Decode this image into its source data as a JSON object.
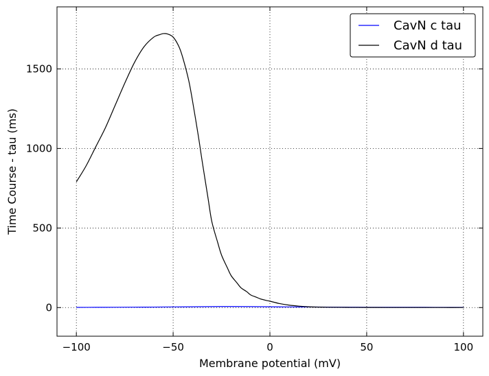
{
  "chart_data": {
    "type": "line",
    "title": "",
    "xlabel": "Membrane potential (mV)",
    "ylabel": "Time Course - tau (ms)",
    "xlim": [
      -110,
      110
    ],
    "ylim": [
      -180,
      1890
    ],
    "xticks": [
      -100,
      -50,
      0,
      50,
      100
    ],
    "yticks": [
      0,
      500,
      1000,
      1500
    ],
    "xtick_labels": [
      "−100",
      "−50",
      "0",
      "50",
      "100"
    ],
    "ytick_labels": [
      "0",
      "500",
      "1000",
      "1500"
    ],
    "grid": true,
    "legend_position": "top-right",
    "series": [
      {
        "name": "CavN c tau",
        "color": "#0000ff",
        "x": [
          -100,
          -90,
          -80,
          -70,
          -60,
          -50,
          -40,
          -30,
          -20,
          -10,
          0,
          10,
          20,
          30,
          40,
          50,
          60,
          70,
          80,
          90,
          100
        ],
        "y": [
          1,
          1.5,
          2,
          2.5,
          3,
          4,
          5,
          6,
          6.5,
          6,
          5,
          4,
          3.5,
          3,
          2.5,
          2,
          1.8,
          1.6,
          1.5,
          1.4,
          1.3
        ]
      },
      {
        "name": "CavN d tau",
        "color": "#000000",
        "x": [
          -100,
          -95,
          -90,
          -85,
          -80,
          -75,
          -70,
          -65,
          -60,
          -57,
          -55,
          -53,
          -50,
          -47,
          -45,
          -42,
          -40,
          -37,
          -35,
          -32,
          -30,
          -27,
          -25,
          -22,
          -20,
          -17,
          -15,
          -12,
          -10,
          -7,
          -5,
          -2,
          0,
          5,
          10,
          15,
          20,
          25,
          30,
          40,
          50,
          60,
          70,
          80,
          90,
          100
        ],
        "y": [
          790,
          890,
          1010,
          1130,
          1270,
          1410,
          1540,
          1640,
          1700,
          1715,
          1722,
          1720,
          1700,
          1640,
          1570,
          1430,
          1300,
          1080,
          920,
          690,
          540,
          410,
          330,
          250,
          200,
          155,
          125,
          100,
          80,
          65,
          55,
          45,
          40,
          25,
          15,
          9,
          5,
          3,
          2,
          1,
          0.6,
          0.4,
          0.3,
          0.25,
          0.2,
          0.2
        ]
      }
    ]
  }
}
